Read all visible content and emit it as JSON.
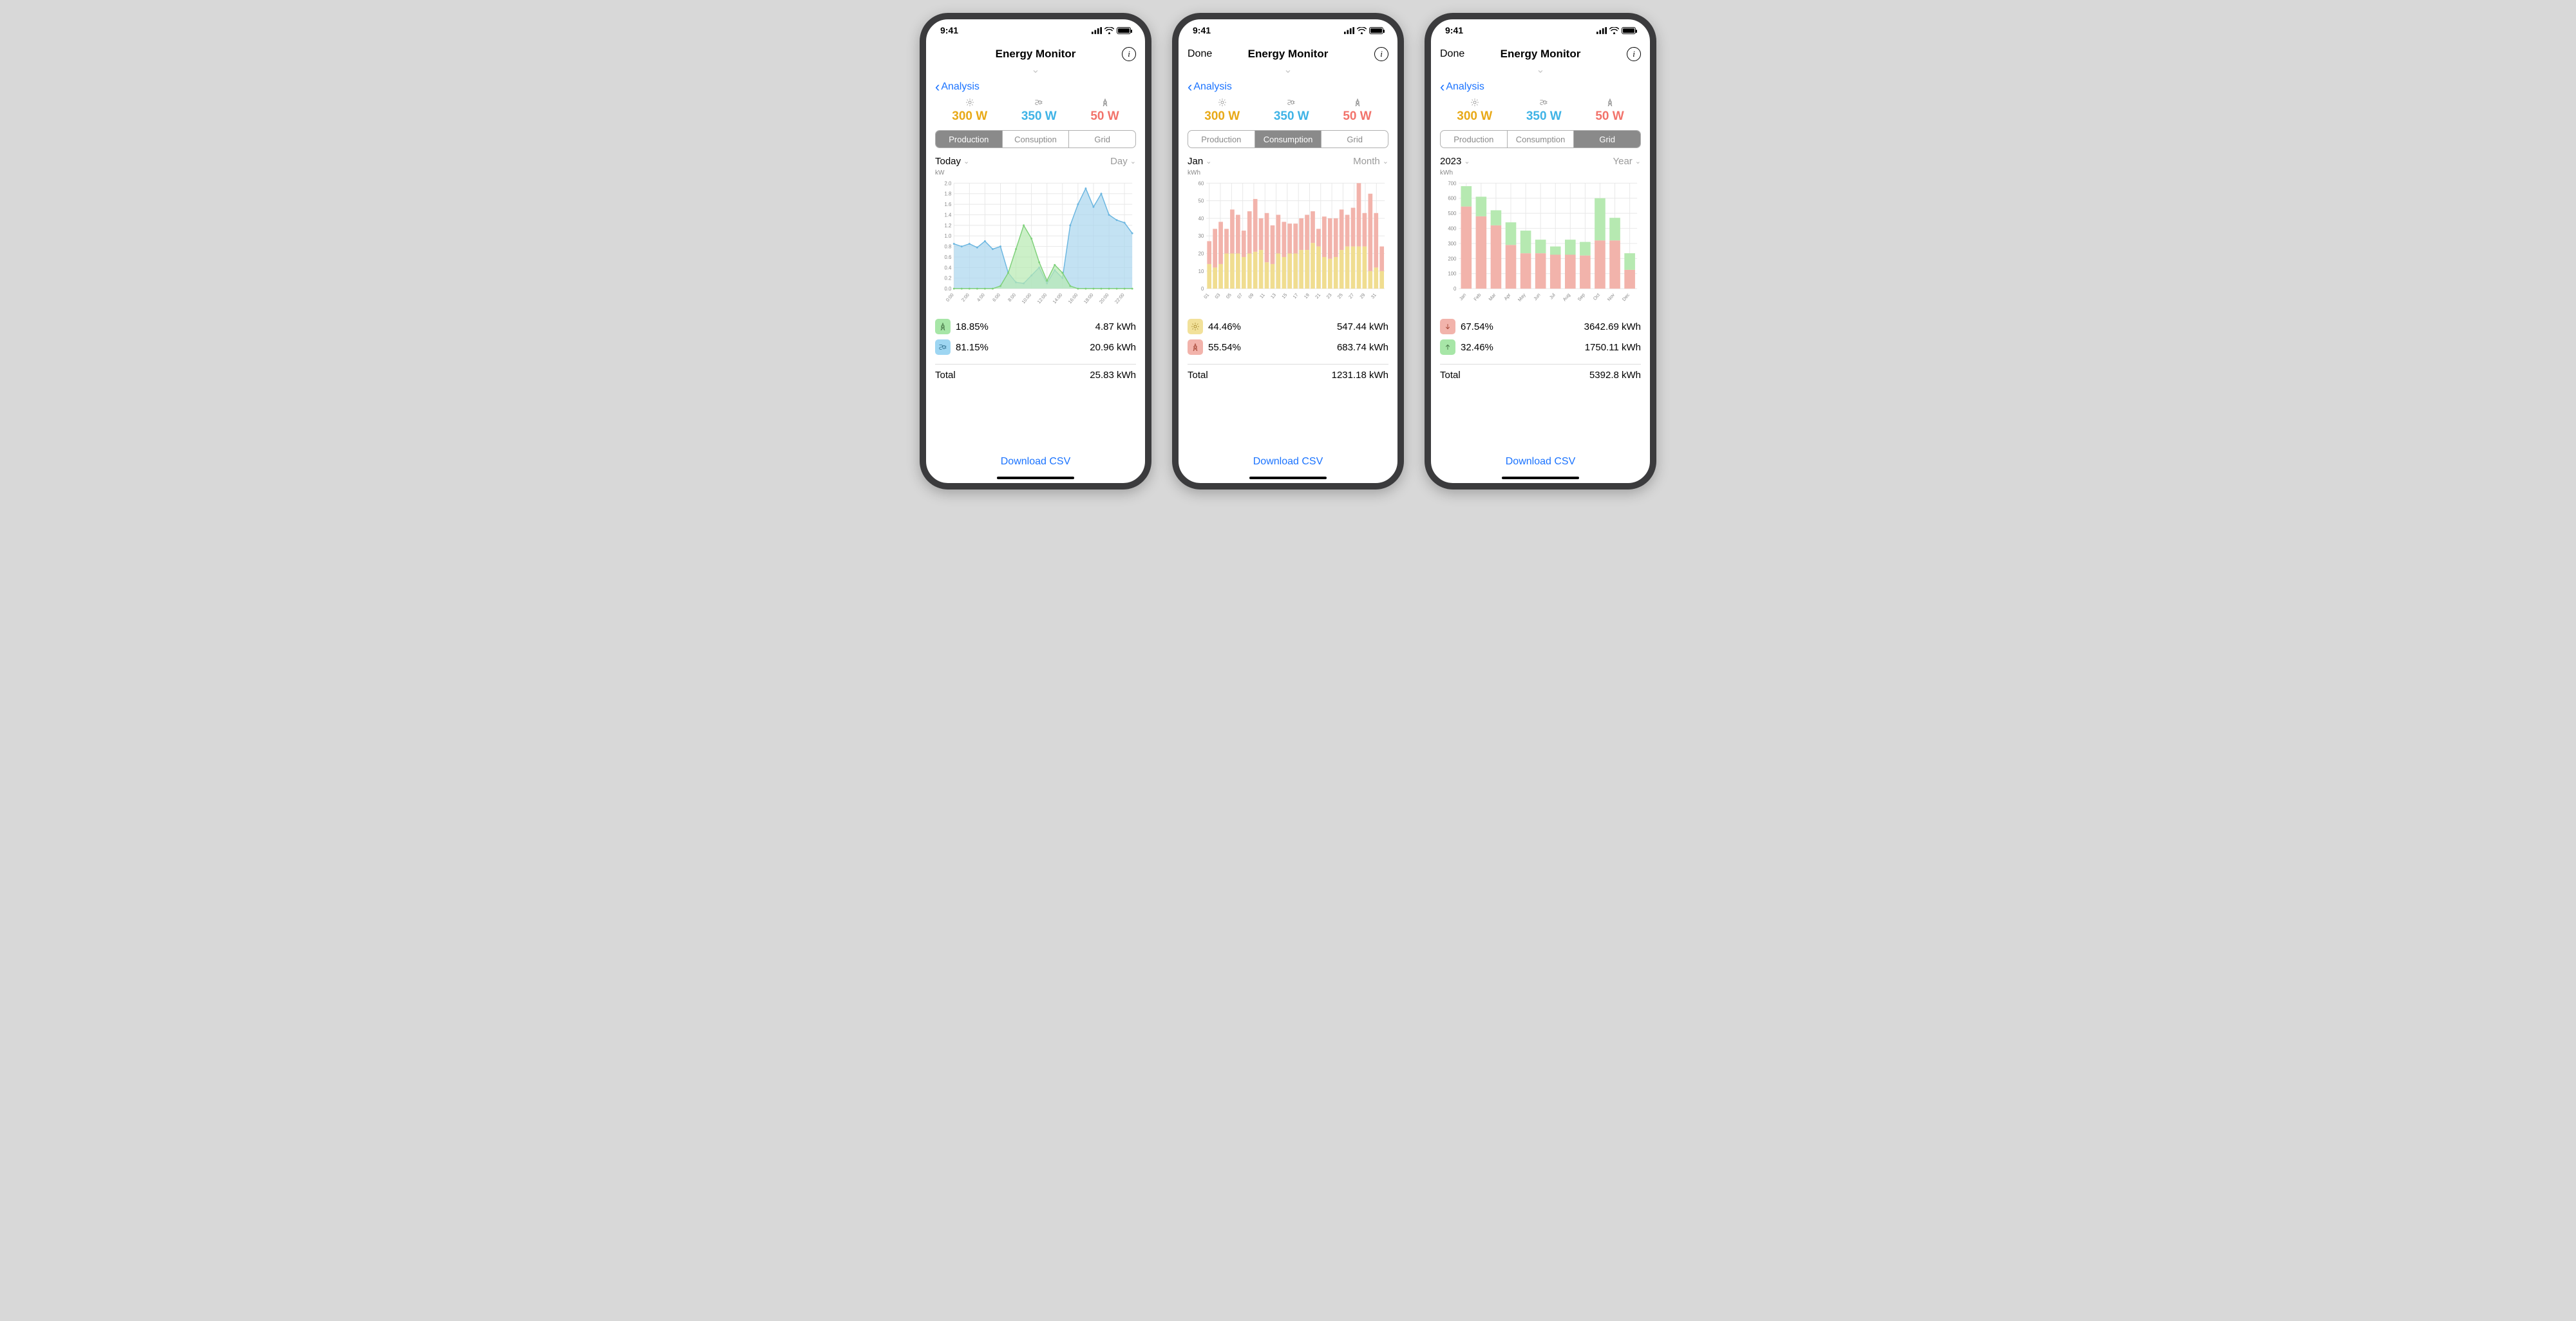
{
  "statusbar": {
    "time": "9:41"
  },
  "navbar": {
    "title": "Energy Monitor",
    "done_label": "Done"
  },
  "back_link": "Analysis",
  "metrics": {
    "sun": {
      "value": "300 W",
      "color": "#e8a917"
    },
    "plug": {
      "value": "350 W",
      "color": "#3fb3e6"
    },
    "tower": {
      "value": "50 W",
      "color": "#f2736b"
    }
  },
  "download_label": "Download CSV",
  "screens": [
    {
      "has_done": false,
      "segmented": {
        "labels": [
          "Production",
          "Consuption",
          "Grid"
        ],
        "active_index": 0
      },
      "range": {
        "left": "Today",
        "right": "Day"
      },
      "chart": {
        "type": "area",
        "unit": "kW",
        "y": {
          "min": 0,
          "max": 2.0,
          "step": 0.2
        },
        "x_labels": [
          "0:00",
          "2:00",
          "4:00",
          "6:00",
          "8:00",
          "10:00",
          "12:00",
          "14:00",
          "16:00",
          "18:00",
          "20:00",
          "22:00"
        ],
        "grid_color": "#e8e8e8",
        "bg": "#ffffff",
        "series": [
          {
            "id": "blue",
            "stroke": "#6bb6e0",
            "fill": "#a9d6ee",
            "fill_opacity": 0.7,
            "line_width": 1.5,
            "marker": "circle",
            "marker_size": 3,
            "points": [
              0.85,
              0.8,
              0.85,
              0.78,
              0.9,
              0.75,
              0.8,
              0.3,
              0.12,
              0.1,
              0.25,
              0.4,
              0.1,
              0.35,
              0.2,
              1.2,
              1.6,
              1.9,
              1.55,
              1.8,
              1.4,
              1.3,
              1.25,
              1.05
            ]
          },
          {
            "id": "green",
            "stroke": "#7ed07a",
            "fill": "#b6e9b1",
            "fill_opacity": 0.7,
            "line_width": 1.5,
            "marker": "circle",
            "marker_size": 3,
            "points": [
              0,
              0,
              0,
              0,
              0,
              0,
              0.05,
              0.3,
              0.75,
              1.2,
              0.95,
              0.5,
              0.15,
              0.45,
              0.3,
              0.05,
              0,
              0,
              0,
              0,
              0,
              0,
              0,
              0
            ]
          }
        ]
      },
      "legend": [
        {
          "chip": "green",
          "icon": "tower",
          "pct": "18.85%",
          "val": "4.87 kWh"
        },
        {
          "chip": "blue",
          "icon": "plug",
          "pct": "81.15%",
          "val": "20.96 kWh"
        }
      ],
      "total": {
        "label": "Total",
        "value": "25.83 kWh"
      }
    },
    {
      "has_done": true,
      "segmented": {
        "labels": [
          "Production",
          "Consumption",
          "Grid"
        ],
        "active_index": 1
      },
      "range": {
        "left": "Jan",
        "right": "Month"
      },
      "chart": {
        "type": "stacked-bar",
        "unit": "kWh",
        "y": {
          "min": 0,
          "max": 60,
          "step": 10
        },
        "x_labels": [
          "01",
          "03",
          "05",
          "07",
          "09",
          "11",
          "13",
          "15",
          "17",
          "19",
          "21",
          "23",
          "25",
          "27",
          "29",
          "31"
        ],
        "grid_color": "#e8e8e8",
        "bg": "#ffffff",
        "bar_gap_ratio": 0.25,
        "stacks": [
          {
            "id": "yellow",
            "fill": "#f0dd90"
          },
          {
            "id": "pink",
            "fill": "#f2b3ab"
          }
        ],
        "data": [
          [
            14,
            13
          ],
          [
            12,
            22
          ],
          [
            14,
            24
          ],
          [
            20,
            14
          ],
          [
            20,
            25
          ],
          [
            20,
            22
          ],
          [
            18,
            15
          ],
          [
            20,
            24
          ],
          [
            21,
            30
          ],
          [
            22,
            18
          ],
          [
            15,
            28
          ],
          [
            14,
            22
          ],
          [
            20,
            22
          ],
          [
            18,
            20
          ],
          [
            20,
            17
          ],
          [
            20,
            17
          ],
          [
            22,
            18
          ],
          [
            22,
            20
          ],
          [
            26,
            18
          ],
          [
            24,
            10
          ],
          [
            18,
            23
          ],
          [
            17,
            23
          ],
          [
            18,
            22
          ],
          [
            22,
            23
          ],
          [
            24,
            18
          ],
          [
            24,
            22
          ],
          [
            24,
            36
          ],
          [
            24,
            19
          ],
          [
            10,
            44
          ],
          [
            12,
            31
          ],
          [
            10,
            14
          ]
        ]
      },
      "legend": [
        {
          "chip": "yellow",
          "icon": "sun",
          "pct": "44.46%",
          "val": "547.44 kWh"
        },
        {
          "chip": "pink",
          "icon": "tower",
          "pct": "55.54%",
          "val": "683.74 kWh"
        }
      ],
      "total": {
        "label": "Total",
        "value": "1231.18 kWh"
      }
    },
    {
      "has_done": true,
      "segmented": {
        "labels": [
          "Production",
          "Consumption",
          "Grid"
        ],
        "active_index": 2
      },
      "range": {
        "left": "2023",
        "right": "Year"
      },
      "chart": {
        "type": "stacked-bar",
        "unit": "kWh",
        "y": {
          "min": 0,
          "max": 700,
          "step": 100
        },
        "x_labels": [
          "Jan",
          "Feb",
          "Mar",
          "Apr",
          "May",
          "Jun",
          "Jul",
          "Aug",
          "Sep",
          "Oct",
          "Nov",
          "Dec"
        ],
        "grid_color": "#e8e8e8",
        "bg": "#ffffff",
        "bar_gap_ratio": 0.28,
        "stacks": [
          {
            "id": "pink",
            "fill": "#f2b3ab"
          },
          {
            "id": "green",
            "fill": "#b6e9b1"
          }
        ],
        "data": [
          [
            545,
            135
          ],
          [
            480,
            130
          ],
          [
            420,
            100
          ],
          [
            290,
            150
          ],
          [
            235,
            150
          ],
          [
            235,
            90
          ],
          [
            225,
            55
          ],
          [
            225,
            100
          ],
          [
            220,
            90
          ],
          [
            320,
            280
          ],
          [
            320,
            150
          ],
          [
            125,
            110
          ]
        ]
      },
      "legend": [
        {
          "chip": "pink",
          "icon": "arrow-down",
          "pct": "67.54%",
          "val": "3642.69 kWh"
        },
        {
          "chip": "green",
          "icon": "arrow-up",
          "pct": "32.46%",
          "val": "1750.11 kWh"
        }
      ],
      "total": {
        "label": "Total",
        "value": "5392.8 kWh"
      }
    }
  ]
}
